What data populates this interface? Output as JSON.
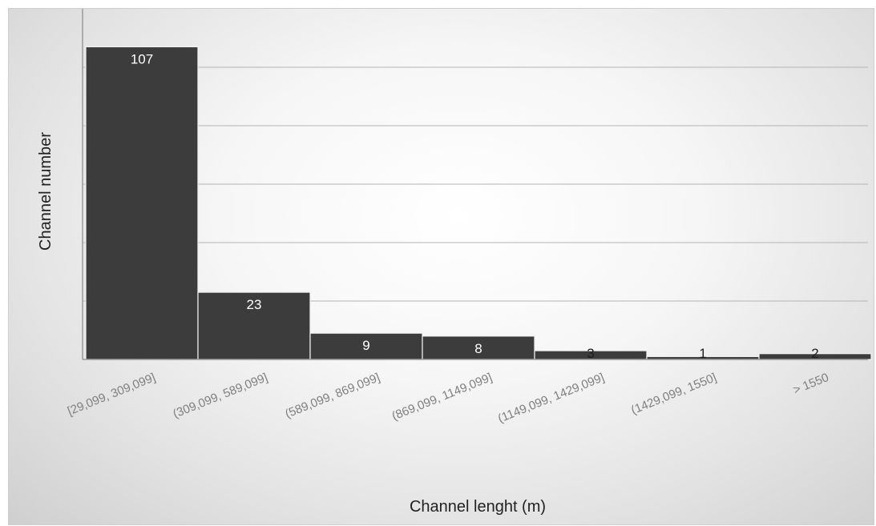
{
  "chart_data": {
    "type": "bar",
    "title": "",
    "xlabel": "Channel lenght (m)",
    "ylabel": "Channel number",
    "categories": [
      "[29,099, 309,099]",
      "(309,099, 589,099]",
      "(589,099, 869,099]",
      "(869,099, 1149,099]",
      "(1149,099, 1429,099]",
      "(1429,099, 1550]",
      "> 1550"
    ],
    "values": [
      107,
      23,
      9,
      8,
      3,
      1,
      2
    ],
    "data_labels": [
      "107",
      "23",
      "9",
      "8",
      "3",
      "1",
      "2"
    ],
    "ylim": [
      0,
      120
    ],
    "grid": true,
    "grid_step": 20,
    "legend": "none",
    "bar_color": "#3c3c3c",
    "label_color_inside": "#ffffff",
    "label_color_outside": "#1e1e1e"
  }
}
